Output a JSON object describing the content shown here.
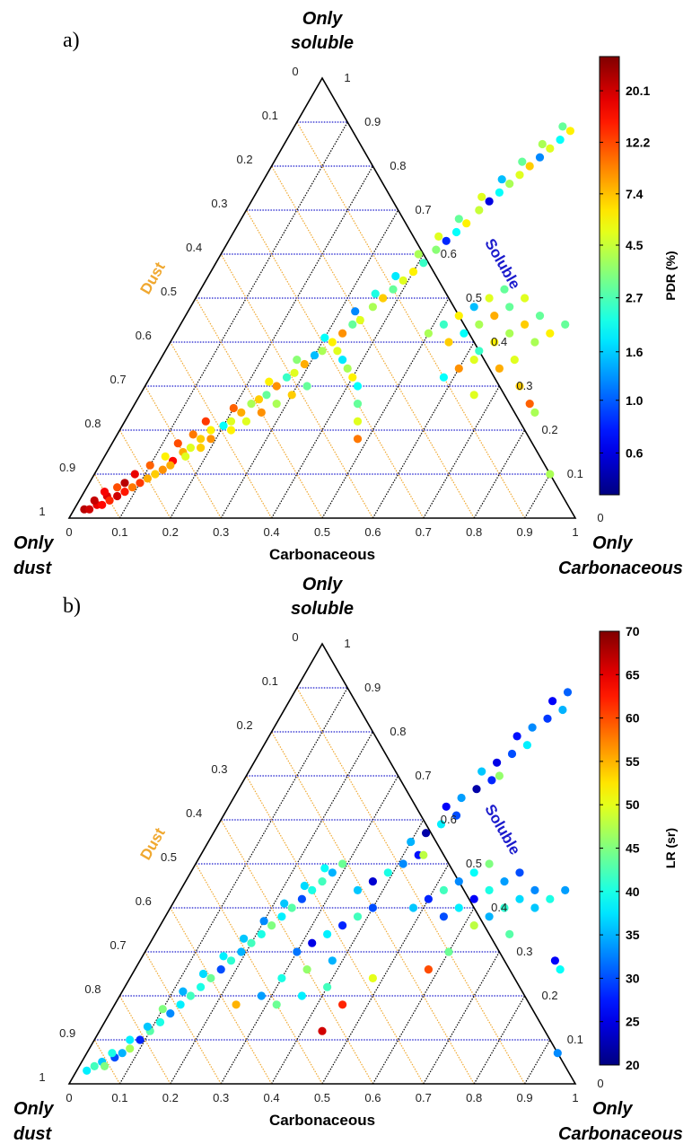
{
  "chart_data": [
    {
      "type": "scatter",
      "panel_label": "a)",
      "corner_labels": {
        "top": [
          "Only",
          "soluble"
        ],
        "left": [
          "Only",
          "dust"
        ],
        "right": [
          "Only",
          "Carbonaceous"
        ]
      },
      "axes": {
        "bottom": "Carbonaceous",
        "left": "Dust",
        "right": "Soluble"
      },
      "axis_colors": {
        "bottom": "#000000",
        "left": "#f0a830",
        "right": "#1a1acc"
      },
      "grid_colors": {
        "soluble": "#1a1acc",
        "dust": "#f0a830",
        "carbonaceous": "#000000"
      },
      "bottom_ticks": [
        "0",
        "0.1",
        "0.2",
        "0.3",
        "0.4",
        "0.5",
        "0.6",
        "0.7",
        "0.8",
        "0.9",
        "1"
      ],
      "left_ticks": [
        "0",
        "0.1",
        "0.2",
        "0.3",
        "0.4",
        "0.5",
        "0.6",
        "0.7",
        "0.8",
        "0.9",
        "1"
      ],
      "right_ticks": [
        "0",
        "0.1",
        "0.2",
        "0.3",
        "0.4",
        "0.5",
        "0.6",
        "0.7",
        "0.8",
        "0.9",
        "1"
      ],
      "colorbar": {
        "label": "PDR (%)",
        "scale": "log",
        "min": 0.4,
        "max": 28,
        "ticks": [
          "0.6",
          "1.0",
          "1.6",
          "2.7",
          "4.5",
          "7.4",
          "12.2",
          "20.1"
        ],
        "tick_values": [
          0.6,
          1.0,
          1.6,
          2.7,
          4.5,
          7.4,
          12.2,
          20.1
        ]
      },
      "point_fields": [
        "carbonaceous",
        "soluble",
        "PDR"
      ],
      "points": [
        [
          0.02,
          0.02,
          22
        ],
        [
          0.03,
          0.02,
          20
        ],
        [
          0.04,
          0.03,
          18
        ],
        [
          0.03,
          0.04,
          21
        ],
        [
          0.05,
          0.03,
          16
        ],
        [
          0.05,
          0.05,
          19
        ],
        [
          0.06,
          0.04,
          14
        ],
        [
          0.04,
          0.06,
          17
        ],
        [
          0.07,
          0.05,
          20
        ],
        [
          0.06,
          0.07,
          12
        ],
        [
          0.08,
          0.06,
          15
        ],
        [
          0.07,
          0.08,
          22
        ],
        [
          0.09,
          0.07,
          10
        ],
        [
          0.1,
          0.08,
          13
        ],
        [
          0.08,
          0.1,
          18
        ],
        [
          0.11,
          0.09,
          8
        ],
        [
          0.12,
          0.1,
          7
        ],
        [
          0.1,
          0.12,
          11
        ],
        [
          0.13,
          0.11,
          9
        ],
        [
          0.12,
          0.14,
          6
        ],
        [
          0.14,
          0.13,
          16
        ],
        [
          0.15,
          0.15,
          8
        ],
        [
          0.13,
          0.17,
          12
        ],
        [
          0.16,
          0.16,
          5
        ],
        [
          0.17,
          0.18,
          7
        ],
        [
          0.15,
          0.19,
          10
        ],
        [
          0.18,
          0.2,
          6
        ],
        [
          0.19,
          0.18,
          9
        ],
        [
          0.16,
          0.22,
          13
        ],
        [
          0.2,
          0.21,
          2
        ],
        [
          0.21,
          0.22,
          5
        ],
        [
          0.22,
          0.24,
          8
        ],
        [
          0.2,
          0.25,
          11
        ],
        [
          0.23,
          0.26,
          4
        ],
        [
          0.24,
          0.27,
          7
        ],
        [
          0.25,
          0.28,
          3
        ],
        [
          0.26,
          0.3,
          9
        ],
        [
          0.24,
          0.31,
          6
        ],
        [
          0.27,
          0.32,
          2.5
        ],
        [
          0.28,
          0.33,
          5
        ],
        [
          0.29,
          0.35,
          8
        ],
        [
          0.27,
          0.36,
          3.5
        ],
        [
          0.3,
          0.37,
          1.5
        ],
        [
          0.31,
          0.38,
          4
        ],
        [
          0.32,
          0.4,
          6
        ],
        [
          0.3,
          0.41,
          2
        ],
        [
          0.33,
          0.42,
          9
        ],
        [
          0.34,
          0.44,
          3
        ],
        [
          0.35,
          0.45,
          5
        ],
        [
          0.33,
          0.47,
          1.2
        ],
        [
          0.36,
          0.48,
          4
        ],
        [
          0.37,
          0.5,
          7
        ],
        [
          0.35,
          0.51,
          2.2
        ],
        [
          0.38,
          0.52,
          3
        ],
        [
          0.39,
          0.54,
          5
        ],
        [
          0.37,
          0.55,
          1.8
        ],
        [
          0.4,
          0.56,
          6
        ],
        [
          0.41,
          0.58,
          2.5
        ],
        [
          0.39,
          0.6,
          4
        ],
        [
          0.42,
          0.61,
          3.5
        ],
        [
          0.43,
          0.63,
          0.8
        ],
        [
          0.41,
          0.64,
          5
        ],
        [
          0.44,
          0.65,
          2
        ],
        [
          0.45,
          0.67,
          6
        ],
        [
          0.43,
          0.68,
          3
        ],
        [
          0.46,
          0.7,
          4.5
        ],
        [
          0.47,
          0.72,
          0.6
        ],
        [
          0.45,
          0.73,
          5
        ],
        [
          0.48,
          0.74,
          2
        ],
        [
          0.49,
          0.76,
          4
        ],
        [
          0.47,
          0.77,
          1.5
        ],
        [
          0.5,
          0.78,
          5
        ],
        [
          0.51,
          0.8,
          7
        ],
        [
          0.49,
          0.81,
          3
        ],
        [
          0.52,
          0.82,
          1.2
        ],
        [
          0.53,
          0.84,
          5
        ],
        [
          0.51,
          0.85,
          4
        ],
        [
          0.54,
          0.86,
          2
        ],
        [
          0.55,
          0.88,
          6
        ],
        [
          0.53,
          0.89,
          3
        ],
        [
          0.5,
          0.42,
          4
        ],
        [
          0.52,
          0.44,
          2.5
        ],
        [
          0.54,
          0.46,
          6
        ],
        [
          0.56,
          0.48,
          1.5
        ],
        [
          0.58,
          0.5,
          5
        ],
        [
          0.6,
          0.52,
          3
        ],
        [
          0.55,
          0.4,
          7
        ],
        [
          0.57,
          0.42,
          2
        ],
        [
          0.59,
          0.44,
          4
        ],
        [
          0.61,
          0.46,
          8
        ],
        [
          0.63,
          0.48,
          3
        ],
        [
          0.65,
          0.5,
          5
        ],
        [
          0.62,
          0.38,
          2.5
        ],
        [
          0.64,
          0.4,
          6
        ],
        [
          0.66,
          0.42,
          4
        ],
        [
          0.68,
          0.44,
          7
        ],
        [
          0.7,
          0.46,
          3
        ],
        [
          0.6,
          0.34,
          9
        ],
        [
          0.62,
          0.36,
          5
        ],
        [
          0.58,
          0.32,
          2
        ],
        [
          0.72,
          0.4,
          4
        ],
        [
          0.74,
          0.42,
          6
        ],
        [
          0.76,
          0.44,
          3
        ],
        [
          0.7,
          0.36,
          5
        ],
        [
          0.68,
          0.34,
          8
        ],
        [
          0.78,
          0.26,
          11
        ],
        [
          0.8,
          0.24,
          4
        ],
        [
          0.9,
          0.1,
          4
        ],
        [
          0.74,
          0.3,
          7
        ],
        [
          0.66,
          0.28,
          5
        ],
        [
          0.48,
          0.18,
          10
        ],
        [
          0.46,
          0.22,
          5
        ],
        [
          0.44,
          0.26,
          3
        ],
        [
          0.42,
          0.3,
          2
        ],
        [
          0.4,
          0.32,
          6
        ],
        [
          0.38,
          0.34,
          4
        ],
        [
          0.36,
          0.36,
          1.8
        ],
        [
          0.34,
          0.38,
          5
        ],
        [
          0.32,
          0.3,
          3
        ],
        [
          0.3,
          0.28,
          7
        ],
        [
          0.28,
          0.26,
          4
        ],
        [
          0.26,
          0.24,
          9
        ],
        [
          0.24,
          0.22,
          5
        ],
        [
          0.22,
          0.2,
          6
        ],
        [
          0.18,
          0.16,
          7
        ],
        [
          0.16,
          0.14,
          5
        ],
        [
          0.14,
          0.12,
          8
        ]
      ]
    },
    {
      "type": "scatter",
      "panel_label": "b)",
      "corner_labels": {
        "top": [
          "Only",
          "soluble"
        ],
        "left": [
          "Only",
          "dust"
        ],
        "right": [
          "Only",
          "Carbonaceous"
        ]
      },
      "axes": {
        "bottom": "Carbonaceous",
        "left": "Dust",
        "right": "Soluble"
      },
      "axis_colors": {
        "bottom": "#000000",
        "left": "#f0a830",
        "right": "#1a1acc"
      },
      "grid_colors": {
        "soluble": "#1a1acc",
        "dust": "#f0a830",
        "carbonaceous": "#000000"
      },
      "bottom_ticks": [
        "0",
        "0.1",
        "0.2",
        "0.3",
        "0.4",
        "0.5",
        "0.6",
        "0.7",
        "0.8",
        "0.9",
        "1"
      ],
      "left_ticks": [
        "0",
        "0.1",
        "0.2",
        "0.3",
        "0.4",
        "0.5",
        "0.6",
        "0.7",
        "0.8",
        "0.9",
        "1"
      ],
      "right_ticks": [
        "0",
        "0.1",
        "0.2",
        "0.3",
        "0.4",
        "0.5",
        "0.6",
        "0.7",
        "0.8",
        "0.9",
        "1"
      ],
      "colorbar": {
        "label": "LR (sr)",
        "scale": "linear",
        "min": 20,
        "max": 70,
        "ticks": [
          "20",
          "25",
          "30",
          "35",
          "40",
          "45",
          "50",
          "55",
          "60",
          "65",
          "70"
        ],
        "tick_values": [
          20,
          25,
          30,
          35,
          40,
          45,
          50,
          55,
          60,
          65,
          70
        ]
      },
      "point_fields": [
        "carbonaceous",
        "soluble",
        "LR"
      ],
      "points": [
        [
          0.02,
          0.03,
          38
        ],
        [
          0.03,
          0.04,
          42
        ],
        [
          0.04,
          0.05,
          36
        ],
        [
          0.05,
          0.04,
          45
        ],
        [
          0.06,
          0.06,
          30
        ],
        [
          0.05,
          0.07,
          40
        ],
        [
          0.07,
          0.07,
          35
        ],
        [
          0.08,
          0.08,
          47
        ],
        [
          0.07,
          0.1,
          38
        ],
        [
          0.09,
          0.1,
          28
        ],
        [
          0.1,
          0.12,
          43
        ],
        [
          0.09,
          0.13,
          36
        ],
        [
          0.11,
          0.14,
          40
        ],
        [
          0.12,
          0.16,
          33
        ],
        [
          0.1,
          0.17,
          45
        ],
        [
          0.13,
          0.18,
          38
        ],
        [
          0.14,
          0.2,
          42
        ],
        [
          0.12,
          0.21,
          35
        ],
        [
          0.15,
          0.22,
          40
        ],
        [
          0.16,
          0.24,
          44
        ],
        [
          0.14,
          0.25,
          37
        ],
        [
          0.17,
          0.26,
          30
        ],
        [
          0.18,
          0.28,
          41
        ],
        [
          0.16,
          0.29,
          38
        ],
        [
          0.19,
          0.3,
          35
        ],
        [
          0.2,
          0.32,
          42
        ],
        [
          0.18,
          0.33,
          36
        ],
        [
          0.21,
          0.34,
          40
        ],
        [
          0.22,
          0.36,
          45
        ],
        [
          0.2,
          0.37,
          33
        ],
        [
          0.23,
          0.38,
          38
        ],
        [
          0.24,
          0.4,
          43
        ],
        [
          0.22,
          0.41,
          36
        ],
        [
          0.25,
          0.42,
          30
        ],
        [
          0.26,
          0.44,
          40
        ],
        [
          0.24,
          0.45,
          37
        ],
        [
          0.27,
          0.46,
          42
        ],
        [
          0.28,
          0.48,
          35
        ],
        [
          0.26,
          0.49,
          39
        ],
        [
          0.29,
          0.5,
          44
        ],
        [
          0.3,
          0.3,
          32
        ],
        [
          0.32,
          0.32,
          25
        ],
        [
          0.34,
          0.34,
          38
        ],
        [
          0.36,
          0.36,
          28
        ],
        [
          0.38,
          0.38,
          42
        ],
        [
          0.4,
          0.4,
          30
        ],
        [
          0.35,
          0.44,
          36
        ],
        [
          0.37,
          0.46,
          24
        ],
        [
          0.39,
          0.48,
          40
        ],
        [
          0.41,
          0.5,
          33
        ],
        [
          0.43,
          0.52,
          27
        ],
        [
          0.4,
          0.55,
          35
        ],
        [
          0.42,
          0.57,
          22
        ],
        [
          0.44,
          0.59,
          38
        ],
        [
          0.46,
          0.61,
          30
        ],
        [
          0.43,
          0.63,
          26
        ],
        [
          0.45,
          0.65,
          34
        ],
        [
          0.47,
          0.67,
          22
        ],
        [
          0.49,
          0.69,
          28
        ],
        [
          0.46,
          0.71,
          36
        ],
        [
          0.48,
          0.73,
          25
        ],
        [
          0.5,
          0.75,
          30
        ],
        [
          0.52,
          0.77,
          38
        ],
        [
          0.49,
          0.79,
          27
        ],
        [
          0.51,
          0.81,
          33
        ],
        [
          0.53,
          0.83,
          29
        ],
        [
          0.55,
          0.85,
          35
        ],
        [
          0.52,
          0.87,
          26
        ],
        [
          0.54,
          0.89,
          31
        ],
        [
          0.5,
          0.7,
          46
        ],
        [
          0.44,
          0.52,
          48
        ],
        [
          0.48,
          0.4,
          36
        ],
        [
          0.5,
          0.42,
          28
        ],
        [
          0.52,
          0.44,
          42
        ],
        [
          0.54,
          0.46,
          33
        ],
        [
          0.56,
          0.48,
          39
        ],
        [
          0.58,
          0.5,
          45
        ],
        [
          0.55,
          0.38,
          30
        ],
        [
          0.57,
          0.4,
          38
        ],
        [
          0.59,
          0.42,
          26
        ],
        [
          0.61,
          0.44,
          40
        ],
        [
          0.63,
          0.46,
          34
        ],
        [
          0.65,
          0.48,
          30
        ],
        [
          0.62,
          0.36,
          48
        ],
        [
          0.64,
          0.38,
          35
        ],
        [
          0.66,
          0.4,
          41
        ],
        [
          0.68,
          0.42,
          37
        ],
        [
          0.7,
          0.44,
          33
        ],
        [
          0.6,
          0.3,
          44
        ],
        [
          0.58,
          0.26,
          60
        ],
        [
          0.72,
          0.4,
          36
        ],
        [
          0.74,
          0.42,
          40
        ],
        [
          0.76,
          0.44,
          34
        ],
        [
          0.7,
          0.34,
          43
        ],
        [
          0.82,
          0.28,
          26
        ],
        [
          0.84,
          0.26,
          39
        ],
        [
          0.93,
          0.07,
          33
        ],
        [
          0.45,
          0.18,
          62
        ],
        [
          0.44,
          0.12,
          66
        ],
        [
          0.48,
          0.24,
          50
        ],
        [
          0.4,
          0.22,
          42
        ],
        [
          0.36,
          0.2,
          38
        ],
        [
          0.32,
          0.18,
          44
        ],
        [
          0.28,
          0.2,
          34
        ],
        [
          0.24,
          0.18,
          55
        ],
        [
          0.3,
          0.24,
          40
        ],
        [
          0.34,
          0.26,
          46
        ],
        [
          0.38,
          0.28,
          35
        ]
      ]
    }
  ]
}
